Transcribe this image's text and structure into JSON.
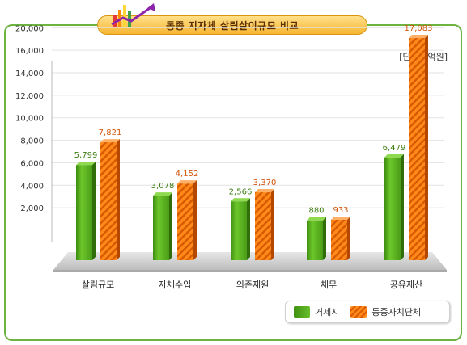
{
  "title": "동종 지자체 살림살이규모 비교",
  "unit": "[단위 : 억원]",
  "colors": {
    "green": "#5bb51f",
    "orange": "#ff7f0e",
    "frame": "#6cb33f"
  },
  "chart_data": {
    "type": "bar",
    "categories": [
      "살림규모",
      "자체수입",
      "의존재원",
      "채무",
      "공유재산"
    ],
    "series": [
      {
        "name": "거제시",
        "values": [
          5799,
          3078,
          2566,
          880,
          6479
        ],
        "labels": [
          "5,799",
          "3,078",
          "2,566",
          "880",
          "6,479"
        ]
      },
      {
        "name": "동종자치단체",
        "values": [
          7821,
          4152,
          3370,
          933,
          17083
        ],
        "labels": [
          "7,821",
          "4,152",
          "3,370",
          "933",
          "17,083"
        ]
      }
    ],
    "yticks": [
      "2,000",
      "4,000",
      "6,000",
      "8,000",
      "10,000",
      "12,000",
      "14,000",
      "16,000",
      "20,000"
    ],
    "ylabel": "",
    "xlabel": "",
    "legend": "bottom-right"
  }
}
